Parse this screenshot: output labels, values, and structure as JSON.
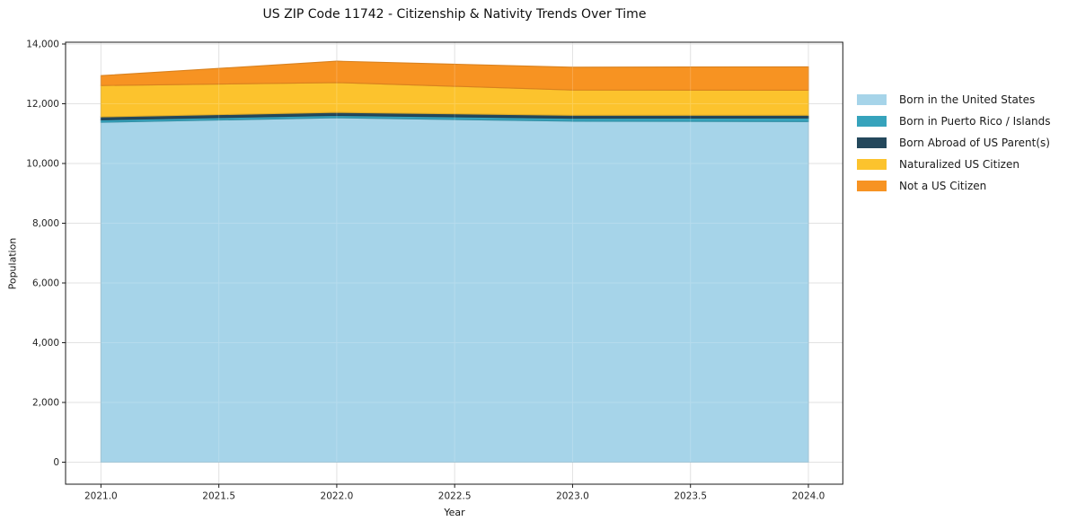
{
  "chart_data": {
    "type": "area",
    "stacked": true,
    "title": "US ZIP Code 11742 - Citizenship & Nativity Trends Over Time",
    "xlabel": "Year",
    "ylabel": "Population",
    "x": [
      2021.0,
      2022.0,
      2023.0,
      2024.0
    ],
    "xlim": [
      2020.85,
      2024.146
    ],
    "ylim": [
      -737,
      14060
    ],
    "grid": true,
    "legend_position": "right-outside",
    "x_ticks": [
      {
        "value": 2021.0,
        "label": "2021.0"
      },
      {
        "value": 2021.5,
        "label": "2021.5"
      },
      {
        "value": 2022.0,
        "label": "2022.0"
      },
      {
        "value": 2022.5,
        "label": "2022.5"
      },
      {
        "value": 2023.0,
        "label": "2023.0"
      },
      {
        "value": 2023.5,
        "label": "2023.5"
      },
      {
        "value": 2024.0,
        "label": "2024.0"
      }
    ],
    "y_ticks": [
      {
        "value": 0,
        "label": "0"
      },
      {
        "value": 2000,
        "label": "2,000"
      },
      {
        "value": 4000,
        "label": "4,000"
      },
      {
        "value": 6000,
        "label": "6,000"
      },
      {
        "value": 8000,
        "label": "8,000"
      },
      {
        "value": 10000,
        "label": "10,000"
      },
      {
        "value": 12000,
        "label": "12,000"
      },
      {
        "value": 14000,
        "label": "14,000"
      }
    ],
    "series": [
      {
        "name": "Born in the United States",
        "color": "#a6d4e9",
        "values": [
          11380,
          11530,
          11415,
          11405
        ]
      },
      {
        "name": "Born in Puerto Rico / Islands",
        "color": "#36a3bc",
        "values": [
          80,
          80,
          100,
          120
        ]
      },
      {
        "name": "Born Abroad of US Parent(s)",
        "color": "#24485c",
        "values": [
          100,
          100,
          100,
          90
        ]
      },
      {
        "name": "Naturalized US Citizen",
        "color": "#fcc32d",
        "values": [
          1050,
          1000,
          845,
          840
        ]
      },
      {
        "name": "Not a US Citizen",
        "color": "#f79322",
        "values": [
          330,
          715,
          765,
          780
        ]
      }
    ],
    "colors": {
      "spine": "#1a1a1a",
      "grid": "#dcdcdc",
      "tick_label": "#262626",
      "background": "#ffffff"
    }
  }
}
